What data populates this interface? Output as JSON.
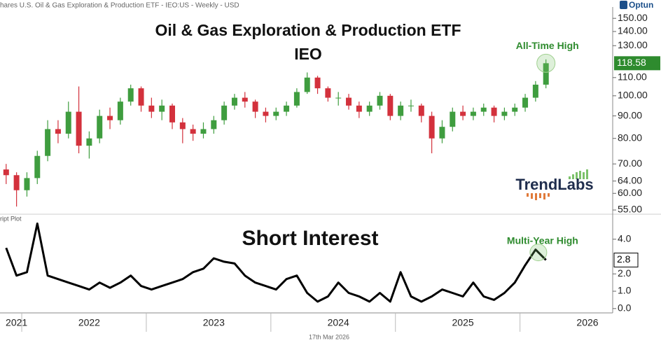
{
  "header": "hares U.S. Oil & Gas Exploration & Production ETF - IEO:US - Weekly - USD",
  "logo": "Optun",
  "watermark": "TrendLabs",
  "footer_date": "17th Mar 2026",
  "chart_data": [
    {
      "type": "candlestick",
      "title": "Oil & Gas Exploration & Production ETF",
      "subtitle": "IEO",
      "annotation": "All-Time High",
      "annotation_color": "#2e8b2e",
      "up_color": "#3f9d3f",
      "down_color": "#d3313c",
      "last_label_color": "#2e8b2e",
      "log": true,
      "ylim": [
        54,
        158
      ],
      "yticks": [
        {
          "value": 150,
          "label": "150.00"
        },
        {
          "value": 140,
          "label": "140.00"
        },
        {
          "value": 130,
          "label": "130.00"
        },
        {
          "value": 110,
          "label": "110.00"
        },
        {
          "value": 100,
          "label": "100.00"
        },
        {
          "value": 90,
          "label": "90.00"
        },
        {
          "value": 80,
          "label": "80.00"
        },
        {
          "value": 70,
          "label": "70.00"
        },
        {
          "value": 64,
          "label": "64.00"
        },
        {
          "value": 60,
          "label": "60.00"
        },
        {
          "value": 55,
          "label": "55.00"
        }
      ],
      "open": [
        68,
        66,
        61,
        65,
        73,
        84,
        82,
        92,
        77,
        80,
        90,
        88,
        97,
        104,
        95,
        92,
        95,
        87,
        84,
        82,
        84,
        88,
        95,
        99,
        97,
        92,
        90,
        92,
        95,
        102,
        110,
        104,
        99,
        99,
        95,
        92,
        95,
        100,
        90,
        95,
        95,
        90,
        80,
        85,
        92,
        90,
        92,
        94,
        90,
        92,
        94,
        99,
        106,
        null,
        null,
        null,
        null
      ],
      "high": [
        70,
        67,
        67,
        75,
        88,
        88,
        97,
        105,
        83,
        93,
        94,
        99,
        106,
        105,
        99,
        98,
        96,
        89,
        86,
        87,
        90,
        97,
        101,
        102,
        98,
        94,
        94,
        97,
        104,
        113,
        111,
        105,
        102,
        101,
        97,
        97,
        102,
        101,
        97,
        98,
        96,
        92,
        88,
        94,
        95,
        94,
        96,
        95,
        94,
        96,
        101,
        108,
        121,
        null,
        null,
        null,
        null
      ],
      "low": [
        63,
        56,
        59,
        63,
        71,
        78,
        80,
        74,
        72,
        78,
        84,
        86,
        95,
        92,
        89,
        88,
        84,
        78,
        79,
        80,
        82,
        86,
        93,
        94,
        89,
        87,
        88,
        90,
        94,
        101,
        101,
        97,
        95,
        93,
        89,
        90,
        93,
        88,
        88,
        92,
        87,
        74,
        78,
        83,
        88,
        88,
        90,
        87,
        88,
        90,
        92,
        97,
        104,
        null,
        null,
        null,
        null
      ],
      "close": [
        66,
        61,
        65,
        73,
        84,
        82,
        92,
        77,
        80,
        90,
        88,
        97,
        104,
        95,
        92,
        95,
        87,
        84,
        82,
        84,
        88,
        95,
        99,
        97,
        92,
        90,
        92,
        95,
        102,
        110,
        104,
        99,
        99,
        95,
        92,
        95,
        100,
        90,
        95,
        95,
        90,
        80,
        85,
        92,
        90,
        92,
        94,
        90,
        92,
        94,
        99,
        106,
        118.58,
        null,
        null,
        null,
        null
      ]
    },
    {
      "type": "line",
      "title": "Short Interest",
      "panel_label": "ript Plot",
      "annotation": "Multi-Year High",
      "annotation_color": "#2e8b2e",
      "color": "#000000",
      "ylim": [
        -0.25,
        5.2
      ],
      "yticks": [
        {
          "value": 4,
          "label": "4.0"
        },
        {
          "value": 2,
          "label": "2.0"
        },
        {
          "value": 1,
          "label": "1.0"
        },
        {
          "value": 0,
          "label": "0.0"
        }
      ],
      "categories": [
        null,
        "2021",
        null,
        null,
        null,
        null,
        null,
        null,
        "2022",
        null,
        null,
        null,
        null,
        null,
        null,
        null,
        null,
        null,
        null,
        null,
        "2023",
        null,
        null,
        null,
        null,
        null,
        null,
        null,
        null,
        null,
        null,
        null,
        "2024",
        null,
        null,
        null,
        null,
        null,
        null,
        null,
        null,
        null,
        null,
        null,
        "2025",
        null,
        null,
        null,
        null,
        null,
        null,
        null,
        null,
        null,
        null,
        null,
        "2026"
      ],
      "values": [
        3.5,
        1.9,
        2.1,
        4.9,
        1.9,
        1.7,
        1.5,
        1.3,
        1.1,
        1.5,
        1.2,
        1.5,
        1.9,
        1.3,
        1.1,
        1.3,
        1.5,
        1.7,
        2.1,
        2.3,
        2.9,
        2.7,
        2.6,
        1.9,
        1.5,
        1.3,
        1.1,
        1.7,
        1.9,
        0.9,
        0.4,
        0.7,
        1.5,
        0.9,
        0.7,
        0.4,
        0.9,
        0.4,
        2.1,
        0.7,
        0.4,
        0.7,
        1.1,
        0.9,
        0.7,
        1.5,
        0.7,
        0.5,
        0.9,
        1.5,
        2.5,
        3.4,
        2.8,
        null,
        null,
        null,
        null
      ]
    }
  ]
}
